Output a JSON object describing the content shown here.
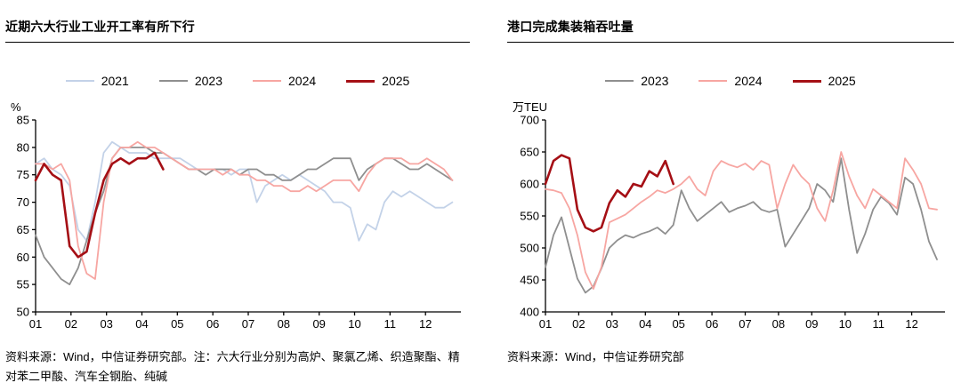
{
  "chart_data": [
    {
      "type": "line",
      "title": "近期六大行业工业开工率有所下行",
      "unit_label": "%",
      "source": "资料来源：Wind，中信证券研究部。注：六大行业分别为高炉、聚氯乙烯、织造聚酯、精对苯二甲酸、汽车全钢胎、纯碱",
      "ylim": [
        50,
        85
      ],
      "yticks": [
        50,
        55,
        60,
        65,
        70,
        75,
        80,
        85
      ],
      "xlim": [
        1,
        13
      ],
      "xticks": [
        "01",
        "02",
        "03",
        "04",
        "05",
        "06",
        "07",
        "08",
        "09",
        "10",
        "11",
        "12"
      ],
      "grid": false,
      "legend_position": "top",
      "series": [
        {
          "name": "2021",
          "color": "#c3d2e8",
          "width": 1.8,
          "x_start": 1,
          "x_step": 0.24,
          "y": [
            77,
            78,
            76,
            75,
            73,
            65,
            63,
            70,
            79,
            81,
            80,
            79,
            79,
            79,
            78,
            78,
            78,
            78,
            77,
            76,
            76,
            76,
            76,
            75,
            76,
            76,
            70,
            73,
            74,
            75,
            74,
            75,
            74,
            73,
            72,
            70,
            70,
            69,
            63,
            66,
            65,
            70,
            72,
            71,
            72,
            71,
            70,
            69,
            69,
            70
          ]
        },
        {
          "name": "2023",
          "color": "#8f8f8f",
          "width": 1.8,
          "x_start": 1,
          "x_step": 0.24,
          "y": [
            64,
            60,
            58,
            56,
            55,
            58,
            63,
            68,
            72,
            78,
            80,
            80,
            80,
            80,
            79,
            79,
            78,
            77,
            76,
            76,
            75,
            76,
            76,
            76,
            75,
            76,
            76,
            75,
            75,
            74,
            74,
            75,
            76,
            76,
            77,
            78,
            78,
            78,
            74,
            76,
            77,
            78,
            78,
            77,
            76,
            76,
            77,
            76,
            75,
            74
          ]
        },
        {
          "name": "2024",
          "color": "#f7a6a2",
          "width": 1.8,
          "x_start": 1,
          "x_step": 0.24,
          "y": [
            77,
            77,
            76,
            77,
            74,
            62,
            57,
            56,
            70,
            78,
            80,
            80,
            81,
            80,
            80,
            79,
            78,
            77,
            76,
            76,
            76,
            76,
            75,
            76,
            75,
            75,
            74,
            74,
            73,
            73,
            72,
            72,
            73,
            72,
            73,
            74,
            74,
            74,
            72,
            75,
            77,
            78,
            78,
            78,
            77,
            77,
            78,
            77,
            76,
            74
          ]
        },
        {
          "name": "2025",
          "color": "#a50f15",
          "width": 2.6,
          "x_start": 1,
          "x_step": 0.24,
          "y": [
            74,
            77,
            75,
            74,
            62,
            60,
            61,
            68,
            74,
            77,
            78,
            77,
            78,
            78,
            79,
            76
          ]
        }
      ]
    },
    {
      "type": "line",
      "title": "港口完成集装箱吞吐量",
      "unit_label": "万TEU",
      "source": "资料来源：Wind，中信证券研究部",
      "ylim": [
        400,
        700
      ],
      "yticks": [
        400,
        450,
        500,
        550,
        600,
        650,
        700
      ],
      "xlim": [
        1,
        13
      ],
      "xticks": [
        "01",
        "02",
        "03",
        "04",
        "05",
        "06",
        "07",
        "08",
        "09",
        "10",
        "11",
        "12"
      ],
      "grid": false,
      "legend_position": "top",
      "series": [
        {
          "name": "2023",
          "color": "#8f8f8f",
          "width": 1.8,
          "x_start": 1,
          "x_step": 0.24,
          "y": [
            470,
            520,
            548,
            500,
            452,
            430,
            440,
            468,
            500,
            512,
            520,
            516,
            522,
            526,
            532,
            522,
            536,
            590,
            562,
            542,
            552,
            562,
            572,
            556,
            562,
            566,
            572,
            560,
            556,
            560,
            502,
            522,
            542,
            562,
            600,
            590,
            572,
            640,
            560,
            492,
            522,
            560,
            580,
            570,
            552,
            610,
            600,
            560,
            510,
            482
          ]
        },
        {
          "name": "2024",
          "color": "#f7a6a2",
          "width": 1.8,
          "x_start": 1,
          "x_step": 0.24,
          "y": [
            592,
            590,
            586,
            562,
            520,
            462,
            436,
            470,
            540,
            546,
            552,
            562,
            572,
            580,
            590,
            586,
            592,
            600,
            612,
            592,
            582,
            620,
            636,
            630,
            626,
            632,
            622,
            636,
            630,
            562,
            600,
            630,
            612,
            600,
            562,
            542,
            590,
            650,
            612,
            582,
            562,
            592,
            582,
            572,
            562,
            640,
            622,
            600,
            562,
            560
          ]
        },
        {
          "name": "2025",
          "color": "#a50f15",
          "width": 2.6,
          "x_start": 1,
          "x_step": 0.24,
          "y": [
            600,
            636,
            645,
            640,
            560,
            532,
            526,
            532,
            570,
            590,
            580,
            600,
            596,
            620,
            612,
            636,
            600
          ]
        }
      ]
    }
  ]
}
